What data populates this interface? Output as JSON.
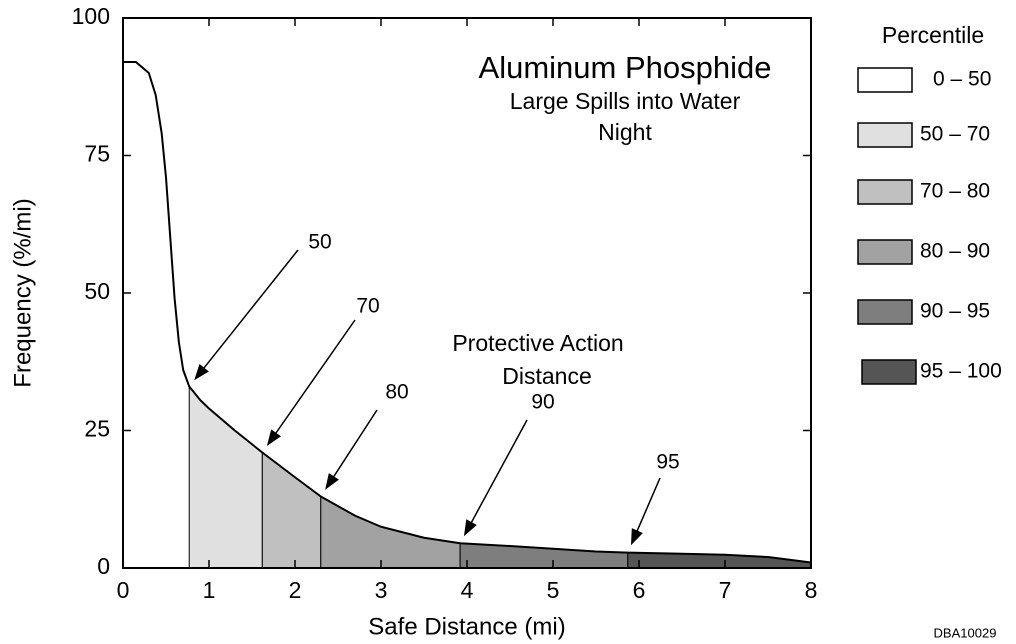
{
  "chart_data": {
    "type": "area",
    "title": "Aluminum Phosphide",
    "subtitle": [
      "Large Spills into Water",
      "Night"
    ],
    "annotation": [
      "Protective Action",
      "Distance"
    ],
    "x_label": "Safe Distance (mi)",
    "y_label": "Frequency (%/mi)",
    "legend_title": "Percentile",
    "footer": "DBA10029",
    "xlim": [
      0,
      8
    ],
    "xticks": [
      0,
      1,
      2,
      3,
      4,
      5,
      6,
      7,
      8
    ],
    "ylim": [
      0,
      100
    ],
    "yticks": [
      0,
      25,
      50,
      75,
      100
    ],
    "curve": {
      "color": "#000000",
      "x": [
        0,
        0.15,
        0.3,
        0.38,
        0.45,
        0.5,
        0.55,
        0.6,
        0.65,
        0.7,
        0.77,
        0.9,
        1.0,
        1.3,
        1.62,
        2.0,
        2.3,
        2.7,
        3.0,
        3.5,
        3.92,
        4.5,
        5.0,
        5.5,
        5.87,
        6.5,
        7.0,
        7.5,
        8.0
      ],
      "values": [
        92,
        92,
        90,
        86,
        79,
        71,
        60,
        49,
        41,
        36,
        33,
        30.5,
        29,
        25,
        21,
        16.5,
        13,
        9.5,
        7.5,
        5.5,
        4.5,
        4,
        3.5,
        3,
        2.8,
        2.6,
        2.4,
        2,
        1
      ]
    },
    "percentile_bands": [
      {
        "name": "0 – 50",
        "color": "#ffffff",
        "x_start": 0,
        "x_end": 0.77
      },
      {
        "name": "50 – 70",
        "color": "#e0e0e0",
        "x_start": 0.77,
        "x_end": 1.62
      },
      {
        "name": "70 – 80",
        "color": "#c0c0c0",
        "x_start": 1.62,
        "x_end": 2.3
      },
      {
        "name": "80 – 90",
        "color": "#a2a2a2",
        "x_start": 2.3,
        "x_end": 3.92
      },
      {
        "name": "90 – 95",
        "color": "#7e7e7e",
        "x_start": 3.92,
        "x_end": 5.87
      },
      {
        "name": "95 – 100",
        "color": "#555555",
        "x_start": 5.87,
        "x_end": 8
      }
    ],
    "markers": [
      {
        "percentile": 50,
        "x": 0.77,
        "y": 33
      },
      {
        "percentile": 70,
        "x": 1.62,
        "y": 21
      },
      {
        "percentile": 80,
        "x": 2.3,
        "y": 13
      },
      {
        "percentile": 90,
        "x": 3.92,
        "y": 4.5
      },
      {
        "percentile": 95,
        "x": 5.87,
        "y": 2.8
      }
    ]
  }
}
